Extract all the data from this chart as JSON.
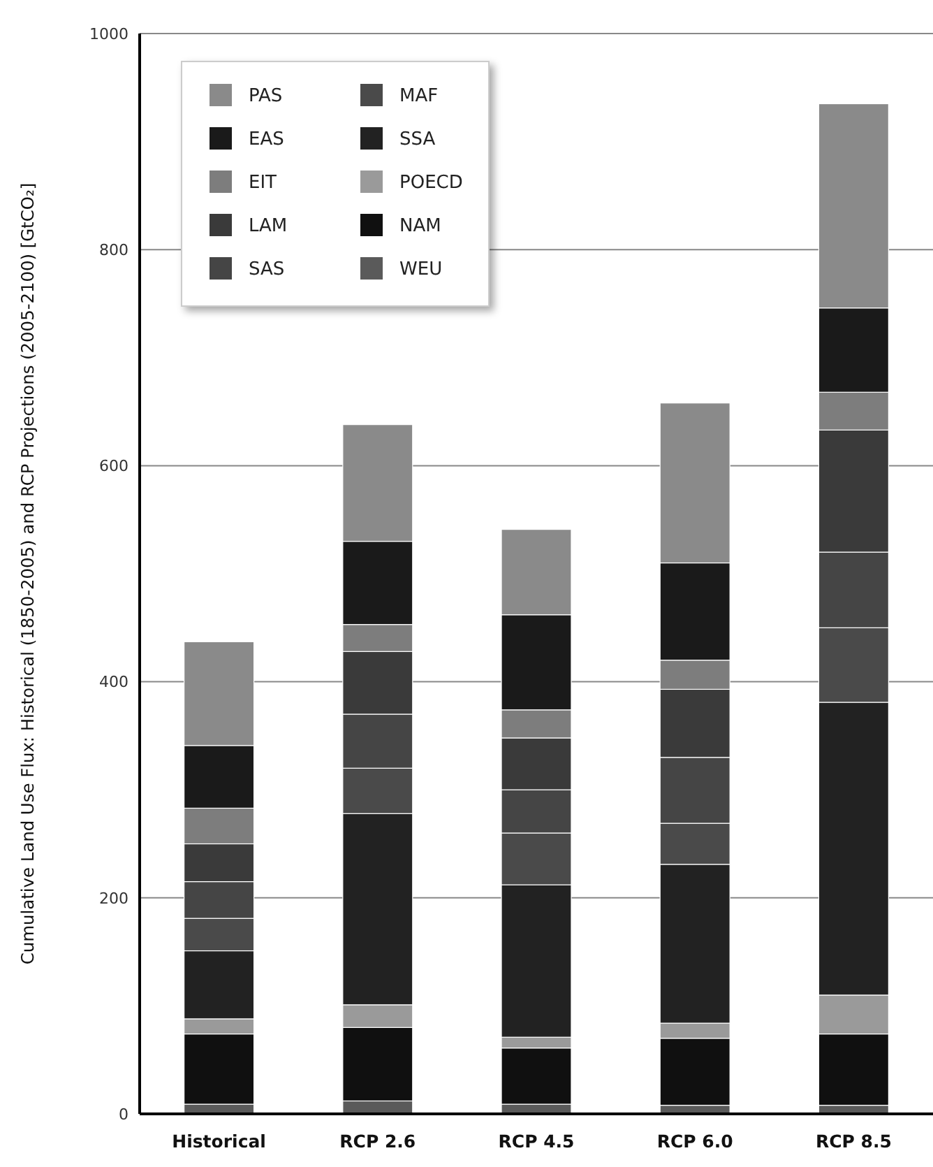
{
  "chart_data": {
    "type": "bar",
    "stacked": true,
    "ylabel": "Cumulative Land Use Flux: Historical (1850-2005) and RCP Projections (2005-2100) [GtCO₂]",
    "categories": [
      "Historical",
      "RCP 2.6",
      "RCP 4.5",
      "RCP 6.0",
      "RCP 8.5"
    ],
    "series": [
      {
        "name": "WEU",
        "color": "#5a5a5a",
        "values": [
          9,
          12,
          9,
          8,
          8
        ]
      },
      {
        "name": "NAM",
        "color": "#101010",
        "values": [
          65,
          68,
          52,
          62,
          66
        ]
      },
      {
        "name": "POECD",
        "color": "#9a9a9a",
        "values": [
          14,
          21,
          10,
          14,
          36
        ]
      },
      {
        "name": "SSA",
        "color": "#222222",
        "values": [
          63,
          177,
          141,
          147,
          271
        ]
      },
      {
        "name": "MAF",
        "color": "#4a4a4a",
        "values": [
          30,
          42,
          48,
          38,
          69
        ]
      },
      {
        "name": "SAS",
        "color": "#454545",
        "values": [
          34,
          50,
          40,
          61,
          70
        ]
      },
      {
        "name": "LAM",
        "color": "#3a3a3a",
        "values": [
          35,
          58,
          48,
          63,
          113
        ]
      },
      {
        "name": "EIT",
        "color": "#7d7d7d",
        "values": [
          33,
          25,
          26,
          27,
          35
        ]
      },
      {
        "name": "EAS",
        "color": "#1a1a1a",
        "values": [
          58,
          77,
          88,
          90,
          78
        ]
      },
      {
        "name": "PAS",
        "color": "#8a8a8a",
        "values": [
          96,
          108,
          79,
          148,
          189
        ]
      }
    ],
    "ylim": [
      0,
      1000
    ],
    "yticks": [
      0,
      200,
      400,
      600,
      800,
      1000
    ],
    "grid": "y",
    "legend": "top left"
  }
}
